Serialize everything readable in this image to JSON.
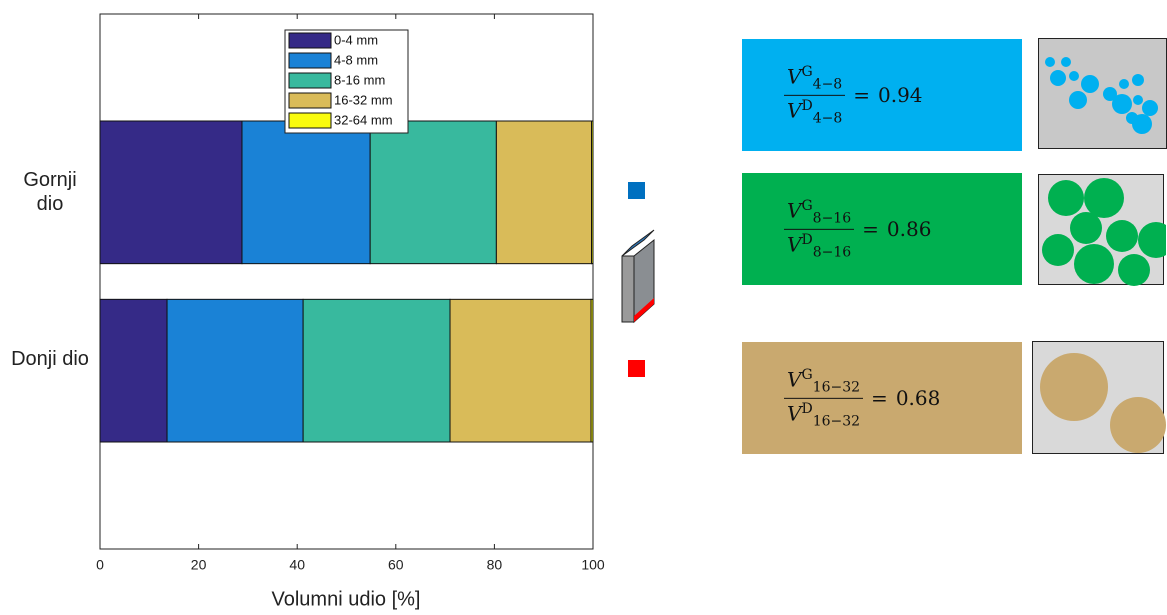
{
  "chart_data": {
    "type": "stacked_barh",
    "categories": [
      "Gornji dio",
      "Donji dio"
    ],
    "series": [
      {
        "name": "0-4 mm",
        "color": "#352a87",
        "values": [
          28.8,
          13.6
        ]
      },
      {
        "name": "4-8 mm",
        "color": "#1a82d6",
        "values": [
          26.0,
          27.6
        ]
      },
      {
        "name": "8-16 mm",
        "color": "#38b99e",
        "values": [
          25.6,
          29.8
        ]
      },
      {
        "name": "16-32 mm",
        "color": "#d9bb59",
        "values": [
          19.3,
          28.6
        ]
      },
      {
        "name": "32-64 mm",
        "color": "#f9fb0e",
        "values": [
          0.3,
          0.4
        ]
      }
    ],
    "xlabel": "Volumni udio [%]",
    "xlim": [
      0,
      100
    ],
    "xticks": [
      0,
      20,
      40,
      60,
      80,
      100
    ],
    "legend": "top"
  },
  "ratio_panels": [
    {
      "variable": "V",
      "top": "G",
      "bottom": "D",
      "range": "4−8",
      "relation": "=",
      "value": 0.94,
      "color": "#00b0f0"
    },
    {
      "variable": "V",
      "top": "G",
      "bottom": "D",
      "range": "8−16",
      "relation": "=",
      "value": 0.86,
      "color": "#00b050"
    },
    {
      "variable": "V",
      "top": "G",
      "bottom": "D",
      "range": "16−32",
      "relation": "=",
      "value": 0.68,
      "color": "#c9a96f"
    }
  ]
}
